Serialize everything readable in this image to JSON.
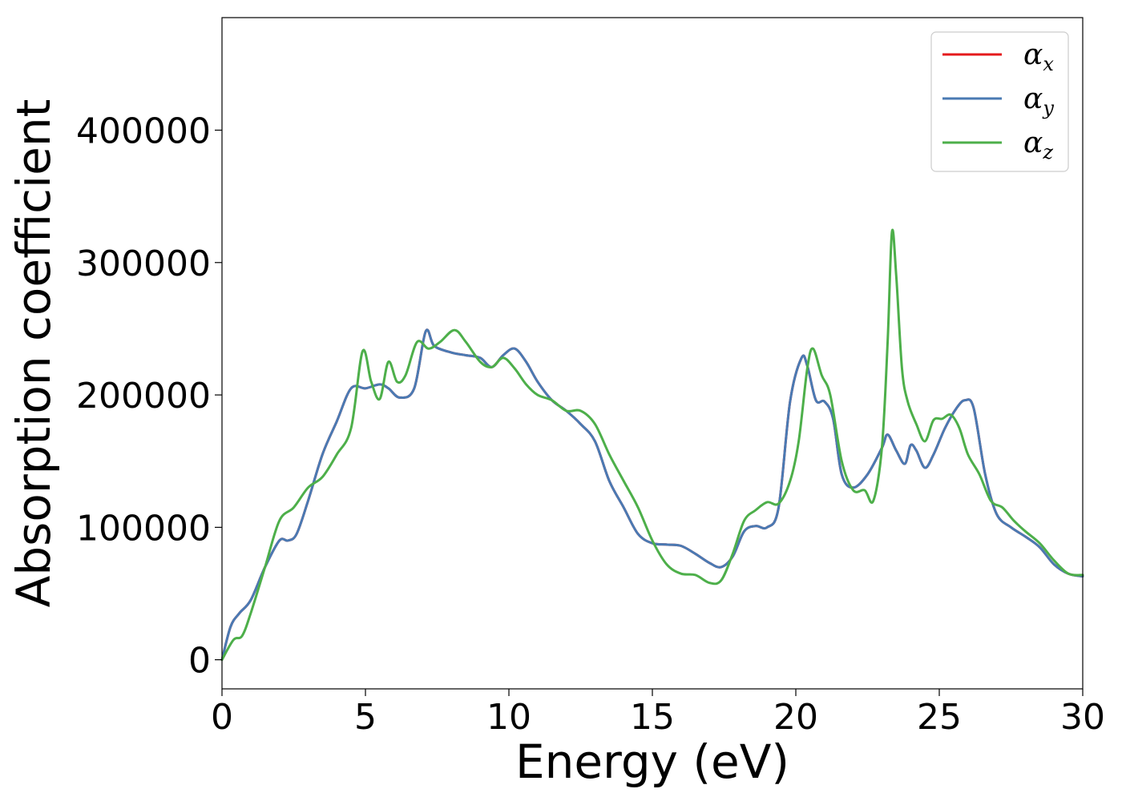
{
  "chart_data": {
    "type": "line",
    "xlabel": "Energy (eV)",
    "ylabel": "Absorption coefficient",
    "xlim": [
      0,
      30
    ],
    "ylim": [
      -22000,
      485000
    ],
    "xticks": [
      0,
      5,
      10,
      15,
      20,
      25,
      30
    ],
    "xtick_labels": [
      "0",
      "5",
      "10",
      "15",
      "20",
      "25",
      "30"
    ],
    "yticks": [
      0,
      100000,
      200000,
      300000,
      400000
    ],
    "ytick_labels": [
      "0",
      "100000",
      "200000",
      "300000",
      "400000"
    ],
    "grid": false,
    "legend_position": "top-right",
    "series": [
      {
        "name": "α_x",
        "legend_symbol": "α",
        "legend_subscript": "x",
        "color": "#e41a1c",
        "x": [
          0,
          0.3,
          0.6,
          1.0,
          1.5,
          2.0,
          2.3,
          2.6,
          3.0,
          3.5,
          4.0,
          4.5,
          5.0,
          5.5,
          5.8,
          6.2,
          6.7,
          7.1,
          7.4,
          8.0,
          8.5,
          9.0,
          9.4,
          9.8,
          10.2,
          10.6,
          11.0,
          11.5,
          12.0,
          12.5,
          13.0,
          13.5,
          14.0,
          14.5,
          15.0,
          15.5,
          16.0,
          16.5,
          17.0,
          17.4,
          17.8,
          18.2,
          18.6,
          19.0,
          19.4,
          19.8,
          20.2,
          20.4,
          20.7,
          21.0,
          21.3,
          21.6,
          22.0,
          22.5,
          23.0,
          23.2,
          23.5,
          23.8,
          24.0,
          24.2,
          24.5,
          24.8,
          25.2,
          25.6,
          25.9,
          26.2,
          26.6,
          27.0,
          27.5,
          28.0,
          28.5,
          29.0,
          29.5,
          30.0
        ],
        "y": [
          0,
          25000,
          35000,
          45000,
          70000,
          90000,
          90000,
          95000,
          120000,
          155000,
          180000,
          205000,
          205000,
          208000,
          205000,
          198000,
          205000,
          248000,
          237000,
          232000,
          230000,
          228000,
          221000,
          230000,
          235000,
          225000,
          210000,
          196000,
          188000,
          178000,
          165000,
          135000,
          115000,
          95000,
          88000,
          87000,
          86000,
          80000,
          73000,
          70000,
          78000,
          97000,
          101000,
          100000,
          115000,
          195000,
          228000,
          222000,
          196000,
          195000,
          182000,
          140000,
          130000,
          140000,
          160000,
          170000,
          158000,
          148000,
          162000,
          158000,
          145000,
          155000,
          175000,
          190000,
          196000,
          190000,
          140000,
          110000,
          100000,
          93000,
          85000,
          72000,
          65000,
          63000
        ]
      },
      {
        "name": "α_y",
        "legend_symbol": "α",
        "legend_subscript": "y",
        "color": "#4a7ab3",
        "x": [
          0,
          0.3,
          0.6,
          1.0,
          1.5,
          2.0,
          2.3,
          2.6,
          3.0,
          3.5,
          4.0,
          4.5,
          5.0,
          5.5,
          5.8,
          6.2,
          6.7,
          7.1,
          7.4,
          8.0,
          8.5,
          9.0,
          9.4,
          9.8,
          10.2,
          10.6,
          11.0,
          11.5,
          12.0,
          12.5,
          13.0,
          13.5,
          14.0,
          14.5,
          15.0,
          15.5,
          16.0,
          16.5,
          17.0,
          17.4,
          17.8,
          18.2,
          18.6,
          19.0,
          19.4,
          19.8,
          20.2,
          20.4,
          20.7,
          21.0,
          21.3,
          21.6,
          22.0,
          22.5,
          23.0,
          23.2,
          23.5,
          23.8,
          24.0,
          24.2,
          24.5,
          24.8,
          25.2,
          25.6,
          25.9,
          26.2,
          26.6,
          27.0,
          27.5,
          28.0,
          28.5,
          29.0,
          29.5,
          30.0
        ],
        "y": [
          0,
          25000,
          35000,
          45000,
          70000,
          90000,
          90000,
          95000,
          120000,
          155000,
          180000,
          205000,
          205000,
          208000,
          205000,
          198000,
          205000,
          248000,
          237000,
          232000,
          230000,
          228000,
          221000,
          230000,
          235000,
          225000,
          210000,
          196000,
          188000,
          178000,
          165000,
          135000,
          115000,
          95000,
          88000,
          87000,
          86000,
          80000,
          73000,
          70000,
          78000,
          97000,
          101000,
          100000,
          115000,
          195000,
          228000,
          222000,
          196000,
          195000,
          182000,
          140000,
          130000,
          140000,
          160000,
          170000,
          158000,
          148000,
          162000,
          158000,
          145000,
          155000,
          175000,
          190000,
          196000,
          190000,
          140000,
          110000,
          100000,
          93000,
          85000,
          72000,
          65000,
          63000
        ]
      },
      {
        "name": "α_z",
        "legend_symbol": "α",
        "legend_subscript": "z",
        "color": "#4daf4a",
        "x": [
          0,
          0.4,
          0.7,
          1.0,
          1.5,
          2.0,
          2.5,
          3.0,
          3.5,
          4.0,
          4.5,
          4.9,
          5.2,
          5.5,
          5.8,
          6.1,
          6.4,
          6.8,
          7.2,
          7.6,
          8.1,
          8.5,
          9.0,
          9.4,
          9.8,
          10.2,
          10.6,
          11.0,
          11.5,
          12.0,
          12.5,
          13.0,
          13.5,
          14.0,
          14.5,
          15.0,
          15.5,
          16.0,
          16.5,
          17.0,
          17.4,
          17.8,
          18.2,
          18.6,
          19.0,
          19.4,
          19.8,
          20.1,
          20.4,
          20.6,
          20.9,
          21.2,
          21.6,
          22.0,
          22.4,
          22.7,
          23.0,
          23.2,
          23.35,
          23.5,
          23.7,
          23.9,
          24.2,
          24.5,
          24.8,
          25.1,
          25.4,
          25.7,
          26.0,
          26.4,
          26.8,
          27.2,
          27.6,
          28.0,
          28.5,
          29.0,
          29.5,
          30.0
        ],
        "y": [
          0,
          15000,
          18000,
          35000,
          70000,
          105000,
          115000,
          130000,
          138000,
          155000,
          175000,
          233000,
          210000,
          197000,
          225000,
          210000,
          215000,
          240000,
          235000,
          240000,
          249000,
          240000,
          225000,
          221000,
          228000,
          220000,
          208000,
          200000,
          196000,
          188000,
          188000,
          178000,
          155000,
          135000,
          115000,
          90000,
          72000,
          65000,
          64000,
          58000,
          60000,
          80000,
          105000,
          113000,
          119000,
          118000,
          135000,
          165000,
          220000,
          235000,
          215000,
          200000,
          150000,
          128000,
          128000,
          120000,
          160000,
          240000,
          323000,
          290000,
          220000,
          195000,
          178000,
          165000,
          181000,
          182000,
          185000,
          175000,
          155000,
          140000,
          120000,
          115000,
          105000,
          97000,
          88000,
          75000,
          65000,
          64000
        ]
      }
    ]
  }
}
